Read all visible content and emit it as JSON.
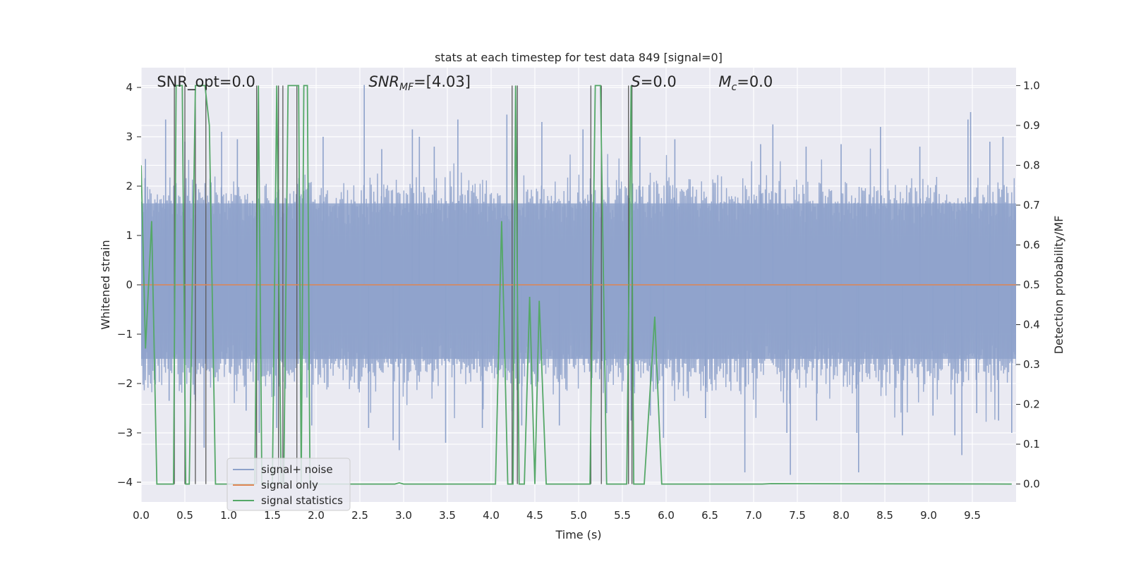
{
  "chart_data": {
    "type": "line",
    "title": "stats at each timestep for test data 849 [signal=0]",
    "xlabel": "Time (s)",
    "ylabel": "Whitened strain",
    "y2label": "Detection probability/MF",
    "xlim": [
      0.0,
      10.0
    ],
    "ylim": [
      -4.4,
      4.4
    ],
    "y2lim": [
      -0.045,
      1.045
    ],
    "xticks": [
      0.0,
      0.5,
      1.0,
      1.5,
      2.0,
      2.5,
      3.0,
      3.5,
      4.0,
      4.5,
      5.0,
      5.5,
      6.0,
      6.5,
      7.0,
      7.5,
      8.0,
      8.5,
      9.0,
      9.5
    ],
    "xtick_labels": [
      "0.0",
      "0.5",
      "1.0",
      "1.5",
      "2.0",
      "2.5",
      "3.0",
      "3.5",
      "4.0",
      "4.5",
      "5.0",
      "5.5",
      "6.0",
      "6.5",
      "7.0",
      "7.5",
      "8.0",
      "8.5",
      "9.0",
      "9.5"
    ],
    "yticks": [
      -4,
      -3,
      -2,
      -1,
      0,
      1,
      2,
      3,
      4
    ],
    "ytick_labels": [
      "−4",
      "−3",
      "−2",
      "−1",
      "0",
      "1",
      "2",
      "3",
      "4"
    ],
    "y2ticks": [
      0.0,
      0.1,
      0.2,
      0.3,
      0.4,
      0.5,
      0.6,
      0.7,
      0.8,
      0.9,
      1.0
    ],
    "y2tick_labels": [
      "0.0",
      "0.1",
      "0.2",
      "0.3",
      "0.4",
      "0.5",
      "0.6",
      "0.7",
      "0.8",
      "0.9",
      "1.0"
    ],
    "grid": true,
    "legend_position": "lower-left",
    "annotations": [
      {
        "text": "SNR_opt=0.0",
        "x": 0.18,
        "y": 4.1
      },
      {
        "html": "<tspan font-style=\"italic\">SNR</tspan><tspan font-style=\"italic\" font-size=\"14\" dy=\"5\">MF</tspan><tspan dy=\"-5\">=[4.03]</tspan>",
        "x": 2.6,
        "y": 4.1
      },
      {
        "html": "<tspan font-style=\"italic\">S</tspan><tspan>=0.0</tspan>",
        "x": 5.6,
        "y": 4.1
      },
      {
        "html": "<tspan font-style=\"italic\">M</tspan><tspan font-style=\"italic\" font-size=\"14\" dy=\"5\">c</tspan><tspan dy=\"-5\">=0.0</tspan>",
        "x": 6.6,
        "y": 4.1
      }
    ],
    "series": [
      {
        "name": "signal+ noise",
        "color": "#8ea2cb",
        "axis": "left",
        "kind": "noise",
        "spikes": [
          [
            0.05,
            2.55
          ],
          [
            0.28,
            3.35
          ],
          [
            0.32,
            -2.35
          ],
          [
            0.5,
            2.9
          ],
          [
            0.62,
            -2.35
          ],
          [
            0.72,
            -3.3
          ],
          [
            0.92,
            3.1
          ],
          [
            1.1,
            2.95
          ],
          [
            1.2,
            -2.55
          ],
          [
            1.35,
            -3.0
          ],
          [
            1.55,
            -2.9
          ],
          [
            1.95,
            -2.85
          ],
          [
            2.08,
            3.0
          ],
          [
            2.55,
            4.05
          ],
          [
            2.6,
            -2.9
          ],
          [
            2.75,
            2.75
          ],
          [
            2.88,
            -3.15
          ],
          [
            2.95,
            -3.35
          ],
          [
            3.1,
            3.15
          ],
          [
            3.18,
            3.0
          ],
          [
            3.35,
            2.8
          ],
          [
            3.48,
            -3.2
          ],
          [
            3.62,
            3.35
          ],
          [
            3.9,
            -2.9
          ],
          [
            4.18,
            3.45
          ],
          [
            4.35,
            -2.85
          ],
          [
            4.58,
            3.3
          ],
          [
            4.78,
            -2.85
          ],
          [
            5.05,
            3.15
          ],
          [
            5.32,
            -2.6
          ],
          [
            5.6,
            -2.75
          ],
          [
            5.7,
            3.0
          ],
          [
            5.82,
            -2.65
          ],
          [
            5.97,
            -3.1
          ],
          [
            6.1,
            2.95
          ],
          [
            6.45,
            -2.7
          ],
          [
            6.9,
            -3.8
          ],
          [
            7.08,
            2.85
          ],
          [
            7.22,
            3.25
          ],
          [
            7.38,
            -3.0
          ],
          [
            7.42,
            -3.85
          ],
          [
            7.6,
            2.8
          ],
          [
            7.72,
            -2.75
          ],
          [
            8.0,
            2.85
          ],
          [
            8.18,
            -3.0
          ],
          [
            8.2,
            -3.8
          ],
          [
            8.45,
            3.2
          ],
          [
            8.7,
            -3.05
          ],
          [
            8.9,
            2.8
          ],
          [
            9.05,
            -2.65
          ],
          [
            9.3,
            -3.05
          ],
          [
            9.38,
            -3.45
          ],
          [
            9.45,
            3.35
          ],
          [
            9.48,
            3.5
          ],
          [
            9.55,
            -2.6
          ],
          [
            9.7,
            2.9
          ],
          [
            9.8,
            -2.75
          ],
          [
            9.85,
            3.0
          ],
          [
            9.95,
            -3.0
          ]
        ]
      },
      {
        "name": "signal only",
        "color": "#dd8452",
        "axis": "left",
        "kind": "flat",
        "value": 0.0
      },
      {
        "name": "signal statistics",
        "color": "#55a868",
        "axis": "right",
        "kind": "line",
        "x": [
          0.0,
          0.05,
          0.12,
          0.18,
          0.37,
          0.4,
          0.47,
          0.51,
          0.55,
          0.62,
          0.65,
          0.7,
          0.73,
          0.78,
          0.85,
          0.88,
          1.3,
          1.34,
          1.38,
          1.5,
          1.55,
          1.6,
          1.63,
          1.68,
          1.8,
          1.83,
          1.86,
          1.9,
          1.93,
          2.0,
          2.9,
          2.95,
          3.0,
          4.05,
          4.12,
          4.19,
          4.25,
          4.28,
          4.32,
          4.38,
          4.44,
          4.5,
          4.55,
          4.63,
          5.13,
          5.19,
          5.25,
          5.32,
          5.55,
          5.6,
          5.63,
          5.75,
          5.87,
          5.95,
          7.1,
          7.2,
          9.95
        ],
        "y": [
          0.8,
          0.34,
          0.66,
          0.0,
          0.0,
          1.0,
          1.0,
          0.0,
          0.0,
          1.0,
          1.0,
          1.0,
          1.0,
          0.9,
          0.0,
          0.0,
          0.0,
          1.0,
          0.0,
          0.0,
          1.0,
          0.0,
          0.0,
          1.0,
          1.0,
          0.0,
          1.0,
          1.0,
          0.0,
          0.0,
          0.0,
          0.003,
          0.0,
          0.0,
          0.66,
          0.0,
          0.0,
          1.0,
          0.0,
          0.0,
          0.47,
          0.0,
          0.46,
          0.0,
          0.0,
          1.0,
          1.0,
          0.0,
          0.0,
          1.0,
          0.0,
          0.0,
          0.42,
          0.0,
          0.0,
          0.001,
          0.0
        ]
      }
    ],
    "vertical_lines": {
      "color": "#5a5a5a",
      "x": [
        0.38,
        0.5,
        0.62,
        0.74,
        1.32,
        1.57,
        1.62,
        1.78,
        4.24,
        4.3,
        5.14,
        5.26,
        5.57,
        5.61
      ]
    }
  }
}
